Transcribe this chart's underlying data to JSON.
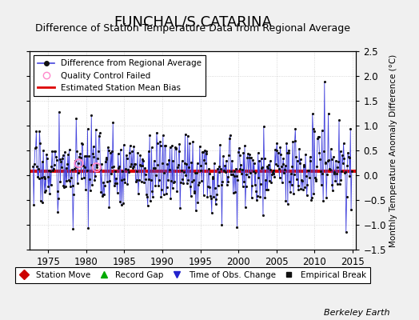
{
  "title": "FUNCHAL/S.CATARINA",
  "subtitle": "Difference of Station Temperature Data from Regional Average",
  "ylabel_right": "Monthly Temperature Anomaly Difference (°C)",
  "bias_line": 0.08,
  "ylim": [
    -1.5,
    2.5
  ],
  "xlim": [
    1972.5,
    2015.5
  ],
  "xticks": [
    1975,
    1980,
    1985,
    1990,
    1995,
    2000,
    2005,
    2010,
    2015
  ],
  "yticks": [
    -1.5,
    -1,
    -0.5,
    0,
    0.5,
    1,
    1.5,
    2,
    2.5
  ],
  "background_color": "#f0f0f0",
  "plot_background": "#ffffff",
  "line_color": "#4444dd",
  "dot_color": "#111111",
  "bias_color": "#dd0000",
  "qc_color": "#ff88cc",
  "title_fontsize": 13,
  "subtitle_fontsize": 9,
  "watermark": "Berkeley Earth",
  "seed": 17
}
